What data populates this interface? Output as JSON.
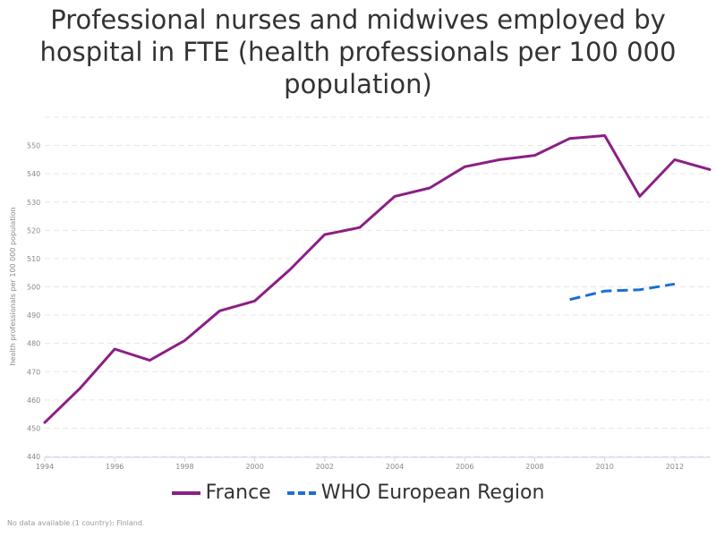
{
  "chart_data": {
    "type": "line",
    "title": "Professional nurses and midwives employed by hospital in FTE (health professionals per 100 000 population)",
    "ylabel": "health professionals per 100 000 population",
    "xlabel": "",
    "xlim": [
      1994,
      2013
    ],
    "ylim": [
      440,
      560
    ],
    "x_ticks": [
      1994,
      1996,
      1998,
      2000,
      2002,
      2004,
      2006,
      2008,
      2010,
      2012
    ],
    "y_ticks": [
      440,
      450,
      460,
      470,
      480,
      490,
      500,
      510,
      520,
      530,
      540,
      550
    ],
    "grid": true,
    "legend_position": "bottom",
    "series": [
      {
        "name": "France",
        "color": "#8b1f85",
        "style": "solid",
        "x": [
          1994,
          1995,
          1996,
          1997,
          1998,
          1999,
          2000,
          2001,
          2002,
          2003,
          2004,
          2005,
          2006,
          2007,
          2008,
          2009,
          2010,
          2011,
          2012,
          2013
        ],
        "values": [
          452,
          464,
          478,
          474,
          481,
          491.5,
          495,
          506,
          518.5,
          521,
          532,
          535,
          542.5,
          545,
          546.5,
          552.5,
          553.5,
          532,
          545,
          541.5
        ]
      },
      {
        "name": "WHO European Region",
        "color": "#1a6fd4",
        "style": "dashed",
        "x": [
          2009,
          2010,
          2011,
          2012
        ],
        "values": [
          495.5,
          498.5,
          499,
          501
        ]
      }
    ]
  },
  "footnote": "No data available (1 country): Finland."
}
